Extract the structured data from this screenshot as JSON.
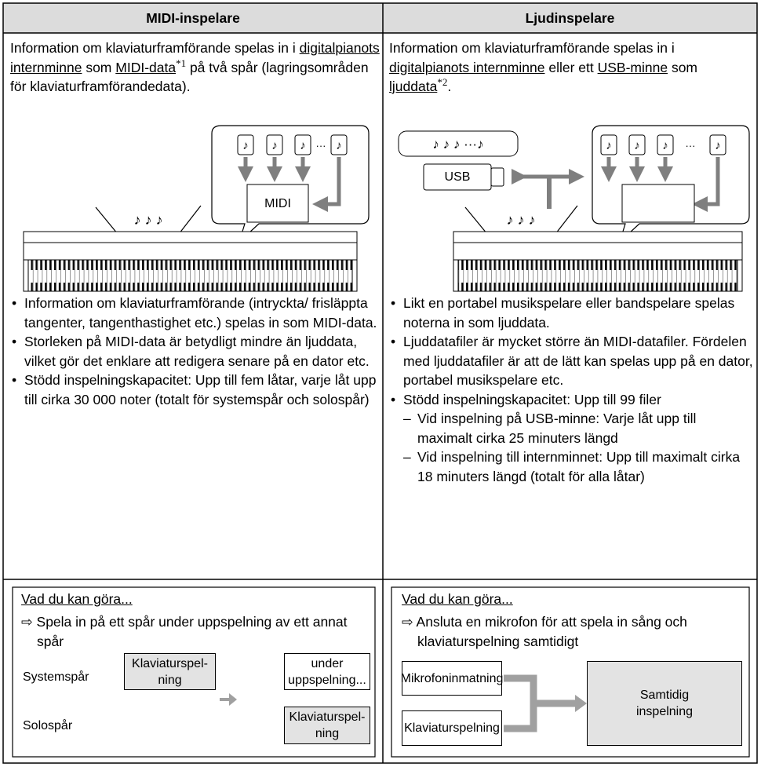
{
  "columns": [
    {
      "heading": "MIDI-inspelare",
      "intro": [
        "Information om klaviaturframförande spelas in i ",
        "digitalpianots internminne",
        " som ",
        "MIDI-data",
        "*1",
        " på två spår (lagringsområden för klaviaturframförandedata)."
      ],
      "illustration": {
        "piano_notes": "♪ ♪ ♪",
        "note": "♪",
        "ellipsis": "···",
        "box_label": "MIDI"
      },
      "bullets": [
        "Information om klaviaturframförande (intryckta/ frisläppta tangenter, tangenthastighet etc.) spelas in som MIDI-data.",
        "Storleken på MIDI-data är betydligt mindre än ljuddata, vilket gör det enklare att redigera senare på en dator etc.",
        "Stödd inspelningskapacitet: Upp till fem låtar, varje låt upp till cirka 30 000 noter (totalt för systemspår och solospår)"
      ],
      "box": {
        "title": "Vad du kan göra...",
        "item": "⇨ Spela in på ett spår under uppspelning av ett annat spår",
        "rows": [
          "Systemspår",
          "Solospår"
        ],
        "boxes": [
          "Klaviaturspel-\nning",
          "under\nuppspelning...",
          "Klaviaturspel-\nning"
        ]
      }
    },
    {
      "heading": "Ljudinspelare",
      "intro": [
        "Information om klaviaturframförande spelas in i ",
        "digitalpianots internminne",
        " eller ett ",
        "USB-minne",
        " som ",
        "ljuddata",
        "*2",
        "."
      ],
      "illustration": {
        "piano_notes": "♪ ♪ ♪",
        "note": "♪",
        "ellipsis": "···",
        "stream": "♪ ♪ ♪ ···♪",
        "usb_label": "USB"
      },
      "bullets": [
        "Likt en portabel musikspelare eller bandspelare spelas noterna in som ljuddata.",
        "Ljuddatafiler är mycket större än MIDI-datafiler. Fördelen med ljuddatafiler är att de lätt kan spelas upp på en dator, portabel musikspelare etc.",
        "Stödd inspelningskapacitet: Upp till 99 filer"
      ],
      "sub_bullets": [
        "Vid inspelning på USB-minne: Varje låt upp till maximalt cirka 25 minuters längd",
        "Vid inspelning till internminnet: Upp till maximalt cirka 18 minuters längd (totalt för alla låtar)"
      ],
      "box": {
        "title": "Vad du kan göra...",
        "item": "⇨ Ansluta en mikrofon för att spela in sång och klaviaturspelning samtidigt",
        "inputs": [
          "Mikrofoninmatning",
          "Klaviaturspelning"
        ],
        "result": "Samtidig\ninspelning"
      }
    }
  ]
}
